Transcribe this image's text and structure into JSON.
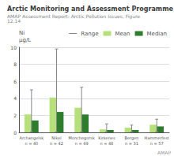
{
  "chart_data": {
    "type": "bar",
    "title": "Arctic Monitoring and Assessment Programme",
    "subtitle": "AMAP Assessment Report: Arctic Pollution Issues, Figure 12.14",
    "ylabel": [
      "Ni",
      "μg/L"
    ],
    "categories": [
      "Archangelsk\nn = 40",
      "Nikel\nn = 42",
      "Monchegorsk\nn = 49",
      "Kirkenes\nn = 48",
      "Bergen\nn = 31",
      "Hammerfest\nn = 57"
    ],
    "series": [
      {
        "name": "Range",
        "type": "range",
        "color": "#888888",
        "low": [
          0.05,
          0.05,
          0.05,
          0.05,
          0.05,
          0.05
        ],
        "high": [
          5.0,
          9.8,
          5.3,
          1.0,
          0.85,
          1.55
        ]
      },
      {
        "name": "Mean",
        "type": "bar",
        "color": "#b5e07a",
        "values": [
          2.1,
          4.1,
          2.9,
          0.35,
          0.55,
          0.9
        ]
      },
      {
        "name": "Median",
        "type": "bar",
        "color": "#2e7d2e",
        "values": [
          1.4,
          2.4,
          2.1,
          0.28,
          0.28,
          0.7
        ]
      }
    ],
    "ylim": [
      0,
      10
    ],
    "yticks": [
      0,
      2,
      4,
      6,
      8,
      10
    ],
    "grid": true,
    "legend": "upper right",
    "annotations": [
      "AMAP"
    ]
  }
}
